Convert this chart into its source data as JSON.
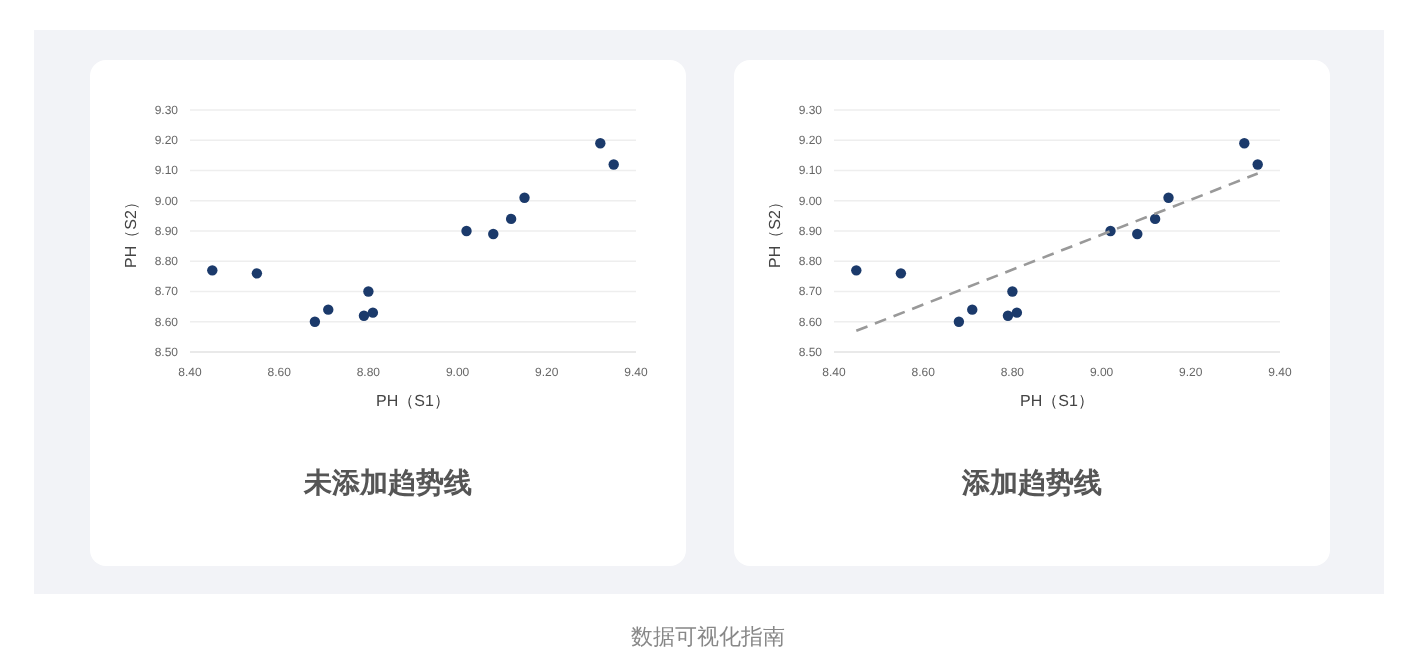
{
  "chart_data": [
    {
      "type": "scatter",
      "title": "未添加趋势线",
      "xlabel": "PH（S1）",
      "ylabel": "PH（S2）",
      "xlim": [
        8.4,
        9.4
      ],
      "xticks": [
        {
          "value": 8.4,
          "label": "8.40"
        },
        {
          "value": 8.6,
          "label": "8.60"
        },
        {
          "value": 8.8,
          "label": "8.80"
        },
        {
          "value": 9.0,
          "label": "9.00"
        },
        {
          "value": 9.2,
          "label": "9.20"
        },
        {
          "value": 9.4,
          "label": "9.40"
        }
      ],
      "ylim": [
        8.5,
        9.3
      ],
      "yticks": [
        {
          "value": 8.5,
          "label": "8.50"
        },
        {
          "value": 8.6,
          "label": "8.60"
        },
        {
          "value": 8.7,
          "label": "8.70"
        },
        {
          "value": 8.8,
          "label": "8.80"
        },
        {
          "value": 8.9,
          "label": "8.90"
        },
        {
          "value": 9.0,
          "label": "9.00"
        },
        {
          "value": 9.1,
          "label": "9.10"
        },
        {
          "value": 9.2,
          "label": "9.20"
        },
        {
          "value": 9.3,
          "label": "9.30"
        }
      ],
      "grid": "y",
      "annotations": [
        "数据可视化指南"
      ],
      "series": [
        {
          "color": "#1b3a6b",
          "marker": "circle",
          "x": [
            8.45,
            8.55,
            8.68,
            8.71,
            8.79,
            8.8,
            8.81,
            9.02,
            9.08,
            9.12,
            9.15,
            9.32,
            9.35
          ],
          "values": [
            8.77,
            8.76,
            8.6,
            8.64,
            8.62,
            8.7,
            8.63,
            8.9,
            8.89,
            8.94,
            9.01,
            9.19,
            9.12
          ]
        }
      ]
    },
    {
      "type": "scatter",
      "title": "添加趋势线",
      "xlabel": "PH（S1）",
      "ylabel": "PH（S2）",
      "xlim": [
        8.4,
        9.4
      ],
      "xticks": [
        {
          "value": 8.4,
          "label": "8.40"
        },
        {
          "value": 8.6,
          "label": "8.60"
        },
        {
          "value": 8.8,
          "label": "8.80"
        },
        {
          "value": 9.0,
          "label": "9.00"
        },
        {
          "value": 9.2,
          "label": "9.20"
        },
        {
          "value": 9.4,
          "label": "9.40"
        }
      ],
      "ylim": [
        8.5,
        9.3
      ],
      "yticks": [
        {
          "value": 8.5,
          "label": "8.50"
        },
        {
          "value": 8.6,
          "label": "8.60"
        },
        {
          "value": 8.7,
          "label": "8.70"
        },
        {
          "value": 8.8,
          "label": "8.80"
        },
        {
          "value": 8.9,
          "label": "8.90"
        },
        {
          "value": 9.0,
          "label": "9.00"
        },
        {
          "value": 9.1,
          "label": "9.10"
        },
        {
          "value": 9.2,
          "label": "9.20"
        },
        {
          "value": 9.3,
          "label": "9.30"
        }
      ],
      "grid": "y",
      "series": [
        {
          "color": "#1b3a6b",
          "marker": "circle",
          "x": [
            8.45,
            8.55,
            8.68,
            8.71,
            8.79,
            8.8,
            8.81,
            9.02,
            9.08,
            9.12,
            9.15,
            9.32,
            9.35
          ],
          "values": [
            8.77,
            8.76,
            8.6,
            8.64,
            8.62,
            8.7,
            8.63,
            8.9,
            8.89,
            8.94,
            9.01,
            9.19,
            9.12
          ]
        },
        {
          "type": "line",
          "color": "#999999",
          "line_style": "dashed",
          "marker": "none",
          "x": [
            8.45,
            9.35
          ],
          "values": [
            8.57,
            9.09
          ]
        }
      ]
    }
  ]
}
